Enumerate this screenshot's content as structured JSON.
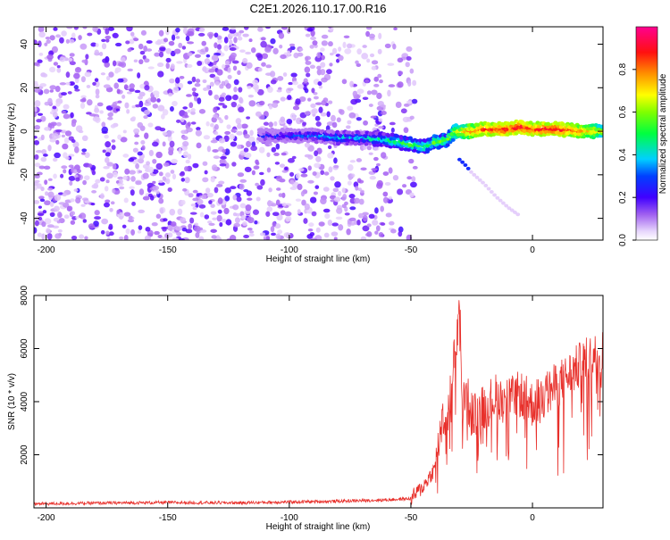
{
  "page": {
    "title": "C2E1.2026.110.17.00.R16"
  },
  "chart_data": [
    {
      "type": "heatmap",
      "xlabel": "Height of straight line (km)",
      "ylabel": "Frequency (Hz)",
      "xlim": [
        -205,
        29
      ],
      "ylim": [
        -50,
        48
      ],
      "x_ticks": [
        -200,
        -150,
        -100,
        -50,
        0
      ],
      "y_ticks": [
        -40,
        -20,
        0,
        20,
        40
      ],
      "colorbar": {
        "label": "Normalized spectral amplitude",
        "range": [
          0.0,
          1.0
        ],
        "ticks": [
          0.0,
          0.2,
          0.4,
          0.6,
          0.8
        ],
        "colormap": [
          "#ffffff",
          "#c8a8f8",
          "#8a2be2",
          "#0000ff",
          "#00e0ff",
          "#00ff00",
          "#ffff00",
          "#ff8000",
          "#ff0000",
          "#ff00a0"
        ]
      },
      "ridge": {
        "x": [
          -112,
          -100,
          -90,
          -80,
          -70,
          -60,
          -55,
          -50,
          -45,
          -40,
          -35,
          -32,
          -30,
          -25,
          -20,
          -10,
          -5,
          0,
          10,
          20,
          29
        ],
        "y": [
          -2,
          -2,
          -2,
          -3,
          -3,
          -4,
          -5,
          -6,
          -7,
          -5,
          -4,
          0,
          0,
          0,
          1,
          1,
          2,
          1,
          1,
          0,
          0
        ],
        "amplitude": [
          0.25,
          0.3,
          0.35,
          0.4,
          0.4,
          0.45,
          0.5,
          0.5,
          0.5,
          0.55,
          0.55,
          0.6,
          0.7,
          0.8,
          0.85,
          0.9,
          0.9,
          0.85,
          0.9,
          0.8,
          0.65
        ]
      },
      "secondary_branch": {
        "x": [
          -30,
          -28,
          -25,
          -20,
          -15,
          -10,
          -5
        ],
        "y": [
          -13,
          -15,
          -19,
          -24,
          -30,
          -35,
          -39
        ]
      }
    },
    {
      "type": "line",
      "xlabel": "Height of straight line (km)",
      "ylabel": "SNR (10 * v/v)",
      "xlim": [
        -205,
        29
      ],
      "ylim": [
        0,
        8000
      ],
      "x_ticks": [
        -200,
        -150,
        -100,
        -50,
        0
      ],
      "y_ticks": [
        2000,
        4000,
        6000,
        8000
      ],
      "line_color": "#e8302b",
      "series": [
        {
          "x": [
            -205,
            -180,
            -150,
            -120,
            -100,
            -80,
            -60,
            -50,
            -45,
            -40,
            -37,
            -35,
            -33,
            -31,
            -30,
            -29,
            -27,
            -25,
            -20,
            -15,
            -10,
            -5,
            0,
            10,
            20,
            25,
            29
          ],
          "y": [
            150,
            180,
            200,
            190,
            220,
            250,
            300,
            350,
            800,
            1500,
            3500,
            3000,
            5000,
            6500,
            8000,
            3800,
            4200,
            3500,
            3800,
            4200,
            4000,
            4300,
            3900,
            4600,
            5400,
            5700,
            5900
          ]
        }
      ]
    }
  ]
}
